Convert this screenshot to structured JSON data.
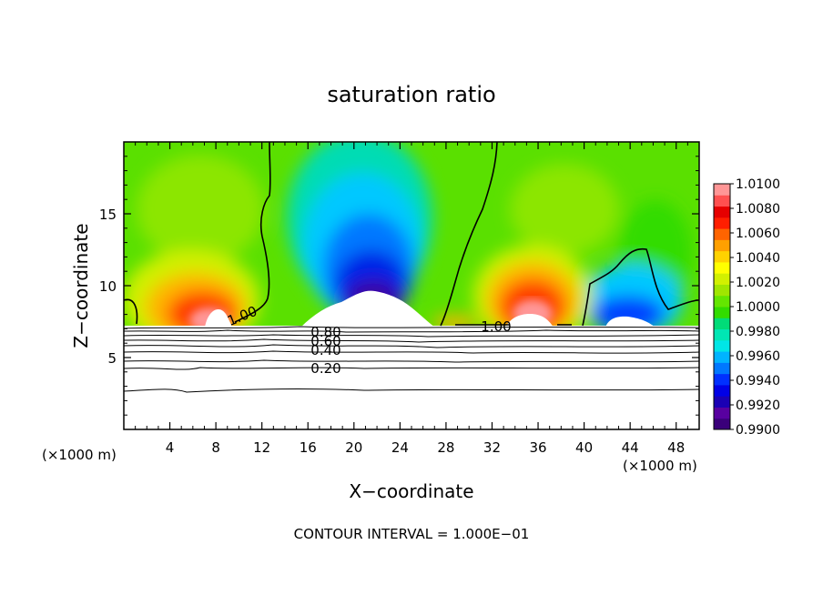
{
  "chart_data": {
    "type": "heatmap",
    "title": "saturation ratio",
    "xlabel": "X−coordinate",
    "ylabel": "Z−coordinate",
    "x_unit": "(×1000 m)",
    "x_unit_right": "(×1000 m)",
    "xlim": [
      0,
      50
    ],
    "ylim": [
      0,
      20
    ],
    "x_ticks": [
      4,
      8,
      12,
      16,
      20,
      24,
      28,
      32,
      36,
      40,
      44,
      48
    ],
    "y_ticks": [
      5,
      10,
      15
    ],
    "colorbar": {
      "labels": [
        "0.9900",
        "0.9920",
        "0.9940",
        "0.9960",
        "0.9980",
        "1.0000",
        "1.0020",
        "1.0040",
        "1.0060",
        "1.0080",
        "1.0100"
      ],
      "colors": [
        "#3a007a",
        "#5800a0",
        "#1a00b4",
        "#0000e6",
        "#0030ff",
        "#0078ff",
        "#00b4ff",
        "#00e6e6",
        "#00e6b4",
        "#00dc78",
        "#32dc00",
        "#64e600",
        "#a0e600",
        "#d2f000",
        "#ffff00",
        "#ffd200",
        "#ffa000",
        "#ff6400",
        "#ff1e00",
        "#e60000",
        "#ff5050",
        "#ff9696"
      ]
    },
    "contour_labels": [
      {
        "text": "1.00",
        "x": 10.5,
        "z": 8.2
      },
      {
        "text": "1.00",
        "x": 32.0,
        "z": 7.1
      },
      {
        "text": "0.80",
        "x": 17.8,
        "z": 6.8
      },
      {
        "text": "0.60",
        "x": 17.8,
        "z": 6.2
      },
      {
        "text": "0.40",
        "x": 17.8,
        "z": 5.6
      },
      {
        "text": "0.20",
        "x": 17.8,
        "z": 4.3
      }
    ],
    "footer": "CONTOUR INTERVAL = 1.000E−01"
  }
}
